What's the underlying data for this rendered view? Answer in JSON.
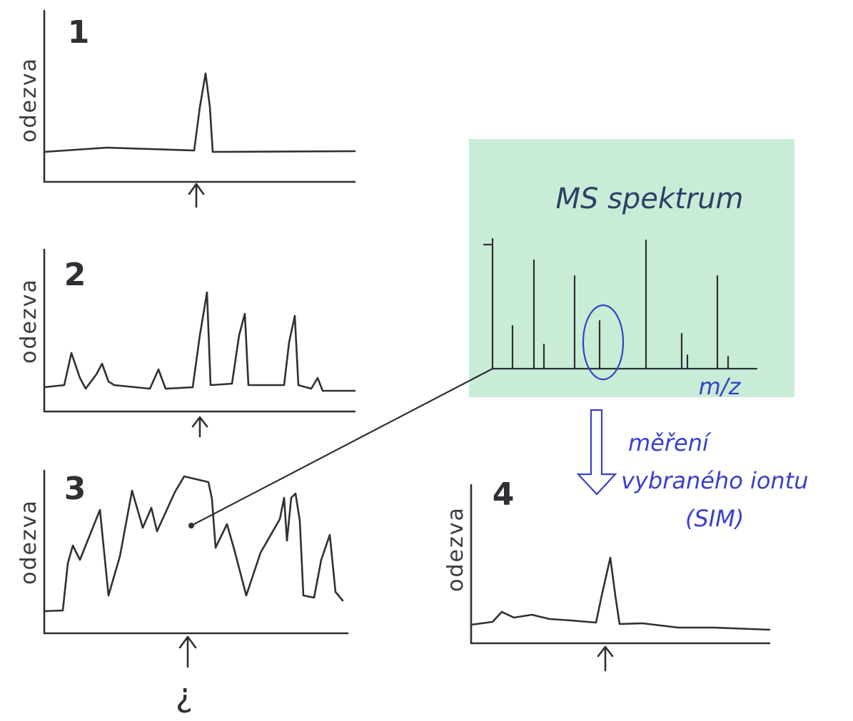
{
  "panels": [
    {
      "number": "1",
      "y_label": "odezva"
    },
    {
      "number": "2",
      "y_label": "odezva"
    },
    {
      "number": "3",
      "y_label": "odezva"
    },
    {
      "number": "4",
      "y_label": "odezva"
    }
  ],
  "ms_box": {
    "title": "MS spektrum",
    "x_label": "m/z"
  },
  "arrow_label": [
    "měření",
    "vybraného iontu",
    "(SIM)"
  ],
  "unknown_mark": "?"
}
